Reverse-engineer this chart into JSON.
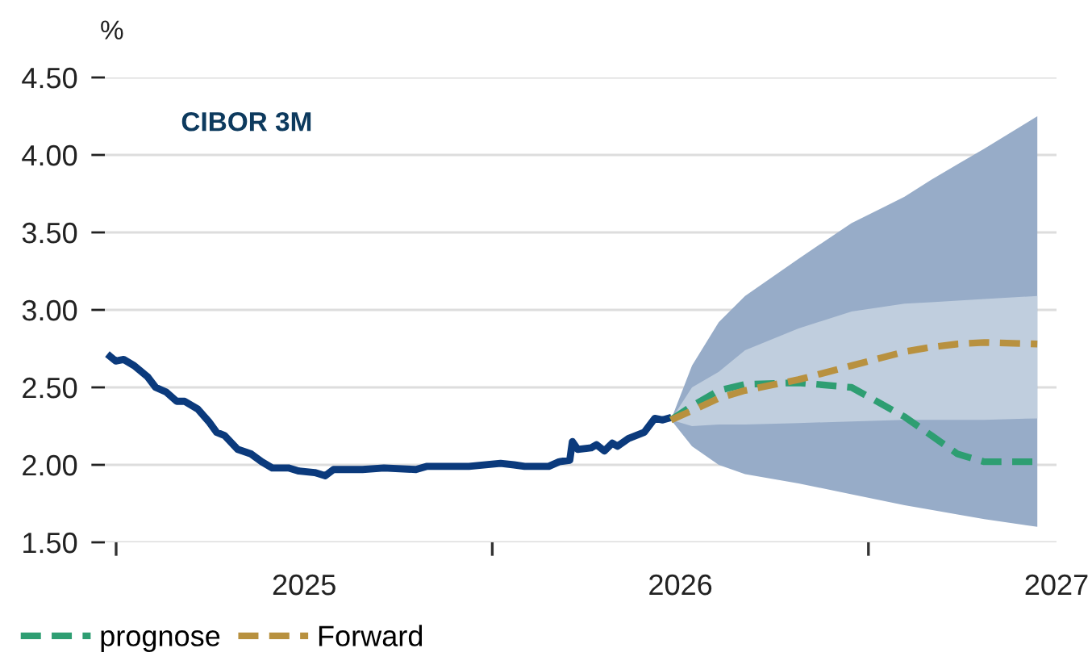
{
  "chart_data": {
    "type": "line",
    "title": "CIBOR 3M",
    "ylabel": "%",
    "xlim": [
      2024.47,
      2027.0
    ],
    "ylim": [
      1.5,
      4.5
    ],
    "xticks": [
      {
        "value": 2024.5,
        "label": null
      },
      {
        "value": 2025,
        "label": "2025"
      },
      {
        "value": 2025.5,
        "label": null
      },
      {
        "value": 2026,
        "label": "2026"
      },
      {
        "value": 2026.5,
        "label": null
      },
      {
        "value": 2027,
        "label": "2027"
      }
    ],
    "yticks": [
      {
        "value": 1.5,
        "label": "1.50"
      },
      {
        "value": 2.0,
        "label": "2.00"
      },
      {
        "value": 2.5,
        "label": "2.50"
      },
      {
        "value": 3.0,
        "label": "3.00"
      },
      {
        "value": 3.5,
        "label": "3.50"
      },
      {
        "value": 4.0,
        "label": "4.00"
      },
      {
        "value": 4.5,
        "label": "4.50"
      }
    ],
    "grid": "y",
    "legend": "bottom left",
    "series": [
      {
        "type": "line",
        "color": "#0b3a7c",
        "line_style": "solid",
        "x": [
          2024.484,
          2024.499,
          2024.52,
          2024.548,
          2024.583,
          2024.605,
          2024.633,
          2024.661,
          2024.682,
          2024.717,
          2024.746,
          2024.767,
          2024.788,
          2024.823,
          2024.859,
          2024.887,
          2024.915,
          2024.958,
          2024.986,
          2025.028,
          2025.056,
          2025.078,
          2025.155,
          2025.212,
          2025.297,
          2025.325,
          2025.438,
          2025.522,
          2025.558,
          2025.586,
          2025.65,
          2025.678,
          2025.706,
          2025.713,
          2025.727,
          2025.763,
          2025.777,
          2025.798,
          2025.819,
          2025.833,
          2025.862,
          2025.904,
          2025.932,
          2025.953,
          2025.967
        ],
        "values": [
          2.7,
          2.67,
          2.68,
          2.64,
          2.57,
          2.5,
          2.47,
          2.41,
          2.41,
          2.36,
          2.28,
          2.21,
          2.19,
          2.1,
          2.07,
          2.02,
          1.98,
          1.98,
          1.96,
          1.95,
          1.93,
          1.97,
          1.97,
          1.98,
          1.97,
          1.99,
          1.99,
          2.01,
          2.0,
          1.99,
          1.99,
          2.02,
          2.03,
          2.15,
          2.1,
          2.11,
          2.13,
          2.09,
          2.14,
          2.12,
          2.17,
          2.21,
          2.3,
          2.29,
          2.3
        ]
      },
      {
        "type": "line",
        "name": "prognose",
        "color": "#2e9e72",
        "line_style": "dashed",
        "x": [
          2025.975,
          2026.031,
          2026.102,
          2026.172,
          2026.314,
          2026.455,
          2026.596,
          2026.667,
          2026.737,
          2026.808,
          2026.949
        ],
        "values": [
          2.29,
          2.38,
          2.48,
          2.52,
          2.53,
          2.5,
          2.31,
          2.19,
          2.07,
          2.02,
          2.02
        ],
        "lower": [
          2.29,
          2.12,
          2.0,
          1.94,
          1.88,
          1.81,
          1.74,
          1.71,
          1.68,
          1.65,
          1.6
        ],
        "upper": [
          2.29,
          2.64,
          2.92,
          3.09,
          3.33,
          3.56,
          3.73,
          3.84,
          3.94,
          4.04,
          4.25
        ]
      },
      {
        "type": "line",
        "name": "Forward",
        "color": "#b8913f",
        "line_style": "dashed",
        "x": [
          2025.975,
          2026.031,
          2026.102,
          2026.172,
          2026.314,
          2026.455,
          2026.596,
          2026.667,
          2026.737,
          2026.808,
          2026.949
        ],
        "values": [
          2.29,
          2.35,
          2.43,
          2.48,
          2.55,
          2.64,
          2.73,
          2.76,
          2.78,
          2.79,
          2.78
        ],
        "lower": [
          2.29,
          2.25,
          2.26,
          2.26,
          2.27,
          2.28,
          2.29,
          2.29,
          2.29,
          2.29,
          2.3
        ],
        "upper": [
          2.29,
          2.5,
          2.6,
          2.74,
          2.88,
          2.99,
          3.04,
          3.05,
          3.06,
          3.07,
          3.09
        ]
      }
    ]
  }
}
